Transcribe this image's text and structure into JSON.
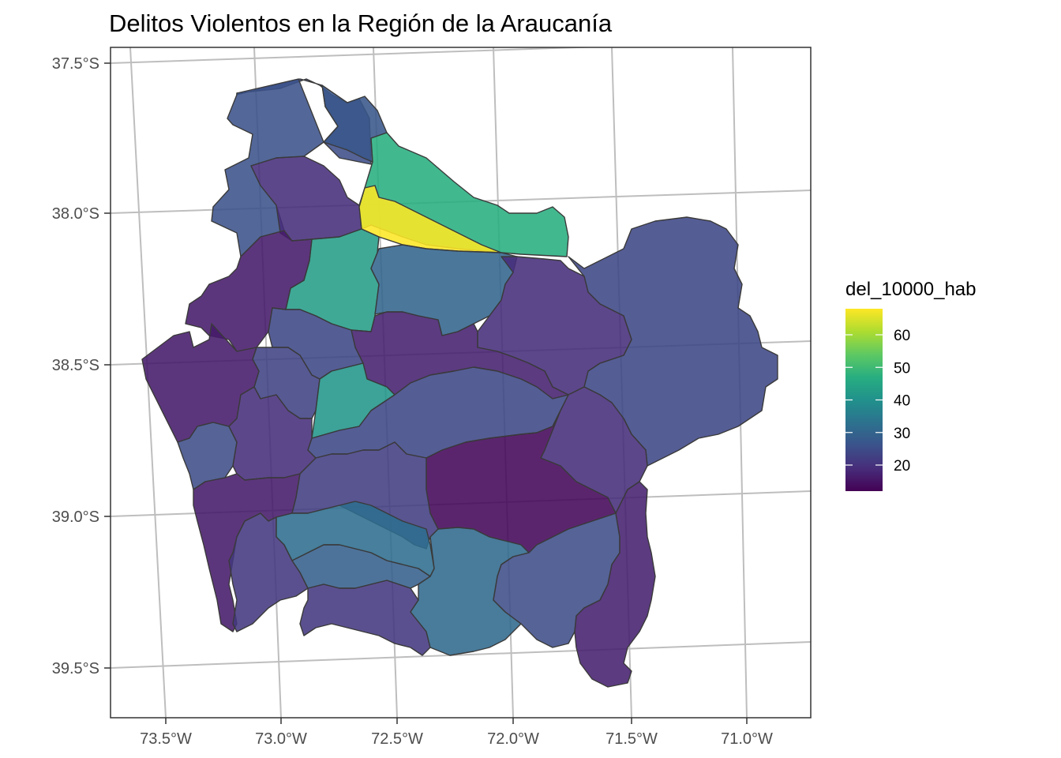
{
  "title": "Delitos Violentos en la Región de la Araucanía",
  "chart_data": {
    "type": "choropleth",
    "title": "Delitos Violentos en la Región de la Araucanía",
    "xlabel": "",
    "ylabel": "",
    "x_ticks": [
      "73.5°W",
      "73.0°W",
      "72.5°W",
      "72.0°W",
      "71.5°W",
      "71.0°W"
    ],
    "y_ticks": [
      "37.5°S",
      "38.0°S",
      "38.5°S",
      "39.0°S",
      "39.5°S"
    ],
    "grid": true,
    "legend": {
      "title": "del_10000_hab",
      "placement": "right",
      "colormap": "viridis",
      "min": 12,
      "max": 68,
      "ticks": [
        "20",
        "30",
        "40",
        "50",
        "60"
      ]
    },
    "regions": [
      {
        "id": "north-west",
        "value": 25
      },
      {
        "id": "north-central",
        "value": 27
      },
      {
        "id": "north-pocket",
        "value": 19
      },
      {
        "id": "north-green",
        "value": 47
      },
      {
        "id": "north-yellow",
        "value": 68
      },
      {
        "id": "west-north",
        "value": 26
      },
      {
        "id": "center-north-green",
        "value": 43
      },
      {
        "id": "center-teal",
        "value": 30
      },
      {
        "id": "east-large",
        "value": 24
      },
      {
        "id": "west-coast-north",
        "value": 16
      },
      {
        "id": "central-east-purple",
        "value": 19
      },
      {
        "id": "central-purple",
        "value": 17
      },
      {
        "id": "central-blue",
        "value": 24
      },
      {
        "id": "small-west",
        "value": 23
      },
      {
        "id": "center-green-small",
        "value": 41
      },
      {
        "id": "coast-west",
        "value": 16
      },
      {
        "id": "coast-strip",
        "value": 25
      },
      {
        "id": "central-south-purple",
        "value": 19
      },
      {
        "id": "center-south-blue",
        "value": 24
      },
      {
        "id": "south-center-dark",
        "value": 13
      },
      {
        "id": "east-purple",
        "value": 19
      },
      {
        "id": "south-coast",
        "value": 16
      },
      {
        "id": "south-blue",
        "value": 22
      },
      {
        "id": "south-teal",
        "value": 32
      },
      {
        "id": "south-teal-small",
        "value": 29
      },
      {
        "id": "south-purple-west",
        "value": 21
      },
      {
        "id": "south-teal-center",
        "value": 31
      },
      {
        "id": "south-east-blue",
        "value": 25
      },
      {
        "id": "south-east-strip",
        "value": 17
      }
    ]
  }
}
